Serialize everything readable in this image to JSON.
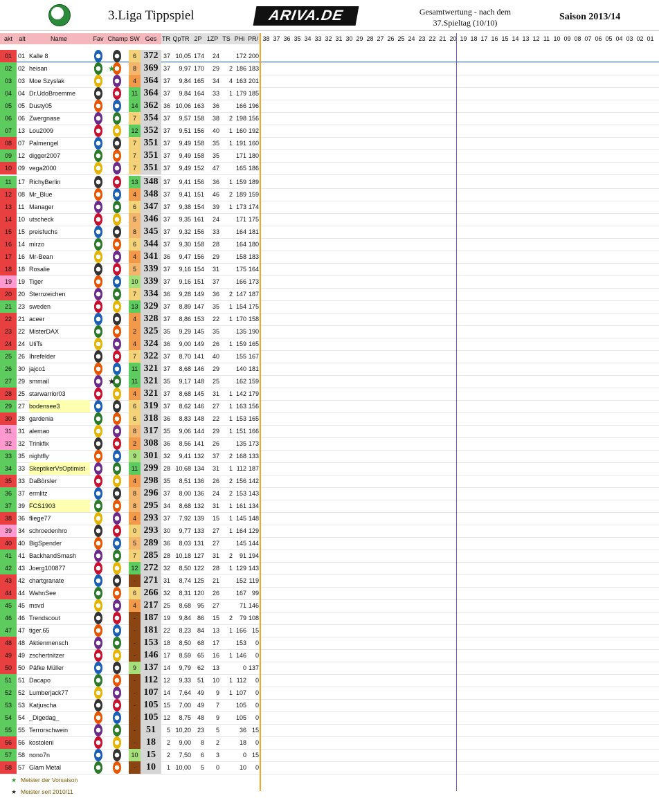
{
  "header": {
    "title": "3.Liga Tippspiel",
    "brand": "ARIVA.DE",
    "subtitle1": "Gesamtwertung - nach dem",
    "subtitle2": "37.Spieltag (10/10)",
    "season": "Saison 2013/14"
  },
  "columns": {
    "akt": "akt",
    "alt": "alt",
    "name": "Name",
    "fav": "Fav",
    "champ": "Champ",
    "sw": "SW",
    "ges": "Ges",
    "tr": "TR",
    "qptr": "QpTR",
    "p2": "2P",
    "z1": "1ZP",
    "ts": "TS",
    "phi": "PHi",
    "pr": "PR/",
    "matchdays": [
      "38",
      "37",
      "36",
      "35",
      "34",
      "33",
      "32",
      "31",
      "30",
      "29",
      "28",
      "27",
      "26",
      "25",
      "24",
      "23",
      "22",
      "21",
      "20",
      "19",
      "18",
      "17",
      "16",
      "15",
      "14",
      "13",
      "12",
      "11",
      "10",
      "09",
      "08",
      "07",
      "06",
      "05",
      "04",
      "03",
      "02",
      "01"
    ]
  },
  "rows": [
    {
      "akt": "01",
      "alt": "01",
      "name": "Kalle 8",
      "sw": "6",
      "ges": "372",
      "tr": "37",
      "qp": "10,05",
      "p2": "174",
      "z1": "24",
      "ts": "",
      "phi": "172",
      "pr": "200"
    },
    {
      "akt": "02",
      "alt": "02",
      "name": "heisan",
      "sw": "8",
      "ges": "369",
      "tr": "37",
      "qp": "9,97",
      "p2": "170",
      "z1": "29",
      "ts": "2",
      "phi": "186",
      "pr": "183"
    },
    {
      "akt": "03",
      "alt": "03",
      "name": "Moe Szyslak",
      "sw": "4",
      "ges": "364",
      "tr": "37",
      "qp": "9,84",
      "p2": "165",
      "z1": "34",
      "ts": "4",
      "phi": "163",
      "pr": "201"
    },
    {
      "akt": "04",
      "alt": "04",
      "name": "Dr.UdoBroemme",
      "sw": "11",
      "ges": "364",
      "tr": "37",
      "qp": "9,84",
      "p2": "164",
      "z1": "33",
      "ts": "1",
      "phi": "179",
      "pr": "185"
    },
    {
      "akt": "05",
      "alt": "05",
      "name": "Dusty05",
      "sw": "14",
      "ges": "362",
      "tr": "36",
      "qp": "10,06",
      "p2": "163",
      "z1": "36",
      "ts": "",
      "phi": "166",
      "pr": "196"
    },
    {
      "akt": "06",
      "alt": "06",
      "name": "Zwergnase",
      "sw": "7",
      "ges": "354",
      "tr": "37",
      "qp": "9,57",
      "p2": "158",
      "z1": "38",
      "ts": "2",
      "phi": "198",
      "pr": "156"
    },
    {
      "akt": "07",
      "alt": "13",
      "name": "Lou2009",
      "sw": "12",
      "ges": "352",
      "tr": "37",
      "qp": "9,51",
      "p2": "156",
      "z1": "40",
      "ts": "1",
      "phi": "160",
      "pr": "192"
    },
    {
      "akt": "08",
      "alt": "07",
      "name": "Palmengel",
      "sw": "7",
      "ges": "351",
      "tr": "37",
      "qp": "9,49",
      "p2": "158",
      "z1": "35",
      "ts": "1",
      "phi": "191",
      "pr": "160"
    },
    {
      "akt": "09",
      "alt": "12",
      "name": "digger2007",
      "sw": "7",
      "ges": "351",
      "tr": "37",
      "qp": "9,49",
      "p2": "158",
      "z1": "35",
      "ts": "",
      "phi": "171",
      "pr": "180"
    },
    {
      "akt": "10",
      "alt": "09",
      "name": "vega2000",
      "sw": "7",
      "ges": "351",
      "tr": "37",
      "qp": "9,49",
      "p2": "152",
      "z1": "47",
      "ts": "",
      "phi": "165",
      "pr": "186"
    },
    {
      "akt": "11",
      "alt": "17",
      "name": "RichyBerlin",
      "sw": "13",
      "ges": "348",
      "tr": "37",
      "qp": "9,41",
      "p2": "156",
      "z1": "36",
      "ts": "1",
      "phi": "159",
      "pr": "189"
    },
    {
      "akt": "12",
      "alt": "08",
      "name": "Mr_Blue",
      "sw": "4",
      "ges": "348",
      "tr": "37",
      "qp": "9,41",
      "p2": "151",
      "z1": "46",
      "ts": "2",
      "phi": "189",
      "pr": "159"
    },
    {
      "akt": "13",
      "alt": "11",
      "name": "Manager",
      "sw": "6",
      "ges": "347",
      "tr": "37",
      "qp": "9,38",
      "p2": "154",
      "z1": "39",
      "ts": "1",
      "phi": "173",
      "pr": "174"
    },
    {
      "akt": "14",
      "alt": "10",
      "name": "utscheck",
      "sw": "5",
      "ges": "346",
      "tr": "37",
      "qp": "9,35",
      "p2": "161",
      "z1": "24",
      "ts": "",
      "phi": "171",
      "pr": "175"
    },
    {
      "akt": "15",
      "alt": "15",
      "name": "preisfuchs",
      "sw": "8",
      "ges": "345",
      "tr": "37",
      "qp": "9,32",
      "p2": "156",
      "z1": "33",
      "ts": "",
      "phi": "164",
      "pr": "181"
    },
    {
      "akt": "16",
      "alt": "14",
      "name": "mirzo",
      "sw": "6",
      "ges": "344",
      "tr": "37",
      "qp": "9,30",
      "p2": "158",
      "z1": "28",
      "ts": "",
      "phi": "164",
      "pr": "180"
    },
    {
      "akt": "17",
      "alt": "16",
      "name": "Mr-Bean",
      "sw": "4",
      "ges": "341",
      "tr": "36",
      "qp": "9,47",
      "p2": "156",
      "z1": "29",
      "ts": "",
      "phi": "158",
      "pr": "183"
    },
    {
      "akt": "18",
      "alt": "18",
      "name": "Rosalie",
      "sw": "5",
      "ges": "339",
      "tr": "37",
      "qp": "9,16",
      "p2": "154",
      "z1": "31",
      "ts": "",
      "phi": "175",
      "pr": "164"
    },
    {
      "akt": "19",
      "alt": "19",
      "name": "Tiger",
      "sw": "10",
      "ges": "339",
      "tr": "37",
      "qp": "9,16",
      "p2": "151",
      "z1": "37",
      "ts": "",
      "phi": "166",
      "pr": "173"
    },
    {
      "akt": "20",
      "alt": "20",
      "name": "Sternzeichen",
      "sw": "7",
      "ges": "334",
      "tr": "36",
      "qp": "9,28",
      "p2": "149",
      "z1": "36",
      "ts": "2",
      "phi": "147",
      "pr": "187"
    },
    {
      "akt": "21",
      "alt": "23",
      "name": "sweden",
      "sw": "13",
      "ges": "329",
      "tr": "37",
      "qp": "8,89",
      "p2": "147",
      "z1": "35",
      "ts": "1",
      "phi": "154",
      "pr": "175"
    },
    {
      "akt": "22",
      "alt": "21",
      "name": "aceer",
      "sw": "4",
      "ges": "328",
      "tr": "37",
      "qp": "8,86",
      "p2": "153",
      "z1": "22",
      "ts": "1",
      "phi": "170",
      "pr": "158"
    },
    {
      "akt": "23",
      "alt": "22",
      "name": "MisterDAX",
      "sw": "2",
      "ges": "325",
      "tr": "35",
      "qp": "9,29",
      "p2": "145",
      "z1": "35",
      "ts": "",
      "phi": "135",
      "pr": "190"
    },
    {
      "akt": "24",
      "alt": "24",
      "name": "UliTs",
      "sw": "4",
      "ges": "324",
      "tr": "36",
      "qp": "9,00",
      "p2": "149",
      "z1": "26",
      "ts": "1",
      "phi": "159",
      "pr": "165"
    },
    {
      "akt": "25",
      "alt": "26",
      "name": "Ihrefelder",
      "sw": "7",
      "ges": "322",
      "tr": "37",
      "qp": "8,70",
      "p2": "141",
      "z1": "40",
      "ts": "",
      "phi": "155",
      "pr": "167"
    },
    {
      "akt": "26",
      "alt": "30",
      "name": "jajco1",
      "sw": "11",
      "ges": "321",
      "tr": "37",
      "qp": "8,68",
      "p2": "146",
      "z1": "29",
      "ts": "",
      "phi": "140",
      "pr": "181"
    },
    {
      "akt": "27",
      "alt": "29",
      "name": "smmail",
      "sw": "11",
      "ges": "321",
      "tr": "35",
      "qp": "9,17",
      "p2": "148",
      "z1": "25",
      "ts": "",
      "phi": "162",
      "pr": "159"
    },
    {
      "akt": "28",
      "alt": "25",
      "name": "starwarrior03",
      "sw": "4",
      "ges": "321",
      "tr": "37",
      "qp": "8,68",
      "p2": "145",
      "z1": "31",
      "ts": "1",
      "phi": "142",
      "pr": "179"
    },
    {
      "akt": "29",
      "alt": "27",
      "name": "bodensee3",
      "sw": "6",
      "ges": "319",
      "tr": "37",
      "qp": "8,62",
      "p2": "146",
      "z1": "27",
      "ts": "1",
      "phi": "163",
      "pr": "156"
    },
    {
      "akt": "30",
      "alt": "28",
      "name": "gardenia",
      "sw": "6",
      "ges": "318",
      "tr": "36",
      "qp": "8,83",
      "p2": "148",
      "z1": "22",
      "ts": "1",
      "phi": "153",
      "pr": "165"
    },
    {
      "akt": "31",
      "alt": "31",
      "name": "alemao",
      "sw": "8",
      "ges": "317",
      "tr": "35",
      "qp": "9,06",
      "p2": "144",
      "z1": "29",
      "ts": "1",
      "phi": "151",
      "pr": "166"
    },
    {
      "akt": "32",
      "alt": "32",
      "name": "Trinkfix",
      "sw": "2",
      "ges": "308",
      "tr": "36",
      "qp": "8,56",
      "p2": "141",
      "z1": "26",
      "ts": "",
      "phi": "135",
      "pr": "173"
    },
    {
      "akt": "33",
      "alt": "35",
      "name": "nightfly",
      "sw": "9",
      "ges": "301",
      "tr": "32",
      "qp": "9,41",
      "p2": "132",
      "z1": "37",
      "ts": "2",
      "phi": "168",
      "pr": "133"
    },
    {
      "akt": "34",
      "alt": "33",
      "name": "SkeptikerVsOptimist",
      "sw": "11",
      "ges": "299",
      "tr": "28",
      "qp": "10,68",
      "p2": "134",
      "z1": "31",
      "ts": "1",
      "phi": "112",
      "pr": "187"
    },
    {
      "akt": "35",
      "alt": "33",
      "name": "DaBörsler",
      "sw": "4",
      "ges": "298",
      "tr": "35",
      "qp": "8,51",
      "p2": "136",
      "z1": "26",
      "ts": "2",
      "phi": "156",
      "pr": "142"
    },
    {
      "akt": "36",
      "alt": "37",
      "name": "ermlitz",
      "sw": "8",
      "ges": "296",
      "tr": "37",
      "qp": "8,00",
      "p2": "136",
      "z1": "24",
      "ts": "2",
      "phi": "153",
      "pr": "143"
    },
    {
      "akt": "37",
      "alt": "39",
      "name": "FCS1903",
      "sw": "8",
      "ges": "295",
      "tr": "34",
      "qp": "8,68",
      "p2": "132",
      "z1": "31",
      "ts": "1",
      "phi": "161",
      "pr": "134"
    },
    {
      "akt": "38",
      "alt": "36",
      "name": "fliege77",
      "sw": "4",
      "ges": "293",
      "tr": "37",
      "qp": "7,92",
      "p2": "139",
      "z1": "15",
      "ts": "1",
      "phi": "145",
      "pr": "148"
    },
    {
      "akt": "39",
      "alt": "34",
      "name": "schroedenhro",
      "sw": "0",
      "ges": "293",
      "tr": "30",
      "qp": "9,77",
      "p2": "133",
      "z1": "27",
      "ts": "1",
      "phi": "164",
      "pr": "129"
    },
    {
      "akt": "40",
      "alt": "40",
      "name": "BigSpender",
      "sw": "5",
      "ges": "289",
      "tr": "36",
      "qp": "8,03",
      "p2": "131",
      "z1": "27",
      "ts": "",
      "phi": "145",
      "pr": "144"
    },
    {
      "akt": "41",
      "alt": "41",
      "name": "BackhandSmash",
      "sw": "7",
      "ges": "285",
      "tr": "28",
      "qp": "10,18",
      "p2": "127",
      "z1": "31",
      "ts": "2",
      "phi": "91",
      "pr": "194"
    },
    {
      "akt": "42",
      "alt": "43",
      "name": "Joerg100877",
      "sw": "12",
      "ges": "272",
      "tr": "32",
      "qp": "8,50",
      "p2": "122",
      "z1": "28",
      "ts": "1",
      "phi": "129",
      "pr": "143"
    },
    {
      "akt": "43",
      "alt": "42",
      "name": "chartgranate",
      "sw": "-",
      "ges": "271",
      "tr": "31",
      "qp": "8,74",
      "p2": "125",
      "z1": "21",
      "ts": "",
      "phi": "152",
      "pr": "119"
    },
    {
      "akt": "44",
      "alt": "44",
      "name": "WahnSee",
      "sw": "6",
      "ges": "266",
      "tr": "32",
      "qp": "8,31",
      "p2": "120",
      "z1": "26",
      "ts": "",
      "phi": "167",
      "pr": "99"
    },
    {
      "akt": "45",
      "alt": "45",
      "name": "msvd",
      "sw": "4",
      "ges": "217",
      "tr": "25",
      "qp": "8,68",
      "p2": "95",
      "z1": "27",
      "ts": "",
      "phi": "71",
      "pr": "146"
    },
    {
      "akt": "46",
      "alt": "46",
      "name": "Trendscout",
      "sw": "-",
      "ges": "187",
      "tr": "19",
      "qp": "9,84",
      "p2": "86",
      "z1": "15",
      "ts": "2",
      "phi": "79",
      "pr": "108"
    },
    {
      "akt": "47",
      "alt": "47",
      "name": "tiger.65",
      "sw": "-",
      "ges": "181",
      "tr": "22",
      "qp": "8,23",
      "p2": "84",
      "z1": "13",
      "ts": "1",
      "phi": "166",
      "pr": "15"
    },
    {
      "akt": "48",
      "alt": "48",
      "name": "Aktienmensch",
      "sw": "-",
      "ges": "153",
      "tr": "18",
      "qp": "8,50",
      "p2": "68",
      "z1": "17",
      "ts": "",
      "phi": "153",
      "pr": "0"
    },
    {
      "akt": "49",
      "alt": "49",
      "name": "zschertnitzer",
      "sw": "-",
      "ges": "146",
      "tr": "17",
      "qp": "8,59",
      "p2": "65",
      "z1": "16",
      "ts": "1",
      "phi": "146",
      "pr": "0"
    },
    {
      "akt": "50",
      "alt": "50",
      "name": "Päfke Müller",
      "sw": "9",
      "ges": "137",
      "tr": "14",
      "qp": "9,79",
      "p2": "62",
      "z1": "13",
      "ts": "",
      "phi": "0",
      "pr": "137"
    },
    {
      "akt": "51",
      "alt": "51",
      "name": "Dacapo",
      "sw": "-",
      "ges": "112",
      "tr": "12",
      "qp": "9,33",
      "p2": "51",
      "z1": "10",
      "ts": "1",
      "phi": "112",
      "pr": "0"
    },
    {
      "akt": "52",
      "alt": "52",
      "name": "Lumberjack77",
      "sw": "-",
      "ges": "107",
      "tr": "14",
      "qp": "7,64",
      "p2": "49",
      "z1": "9",
      "ts": "1",
      "phi": "107",
      "pr": "0"
    },
    {
      "akt": "53",
      "alt": "53",
      "name": "Katjuscha",
      "sw": "-",
      "ges": "105",
      "tr": "15",
      "qp": "7,00",
      "p2": "49",
      "z1": "7",
      "ts": "",
      "phi": "105",
      "pr": "0"
    },
    {
      "akt": "54",
      "alt": "54",
      "name": "_Digedag_",
      "sw": "-",
      "ges": "105",
      "tr": "12",
      "qp": "8,75",
      "p2": "48",
      "z1": "9",
      "ts": "",
      "phi": "105",
      "pr": "0"
    },
    {
      "akt": "55",
      "alt": "55",
      "name": "Terrorschwein",
      "sw": "-",
      "ges": "51",
      "tr": "5",
      "qp": "10,20",
      "p2": "23",
      "z1": "5",
      "ts": "",
      "phi": "36",
      "pr": "15"
    },
    {
      "akt": "56",
      "alt": "56",
      "name": "kostoleni",
      "sw": "-",
      "ges": "18",
      "tr": "2",
      "qp": "9,00",
      "p2": "8",
      "z1": "2",
      "ts": "",
      "phi": "18",
      "pr": "0"
    },
    {
      "akt": "57",
      "alt": "58",
      "name": "nono7n",
      "sw": "10",
      "ges": "15",
      "tr": "2",
      "qp": "7,50",
      "p2": "6",
      "z1": "3",
      "ts": "",
      "phi": "0",
      "pr": "15"
    },
    {
      "akt": "58",
      "alt": "57",
      "name": "Glam Metal",
      "sw": "-",
      "ges": "10",
      "tr": "1",
      "qp": "10,00",
      "p2": "5",
      "z1": "0",
      "ts": "",
      "phi": "10",
      "pr": "0"
    }
  ],
  "legend": {
    "l1": "Meister der Vorsaison",
    "l2": "Meister seit 2010/11"
  },
  "colors": {
    "pink": "#f4b8bc",
    "green_zone": "#5ecb5e",
    "red_zone": "#e84040",
    "highlight": "#b9f24a",
    "low": "#f19a9a",
    "ges_bg": "#d6d6d6"
  }
}
